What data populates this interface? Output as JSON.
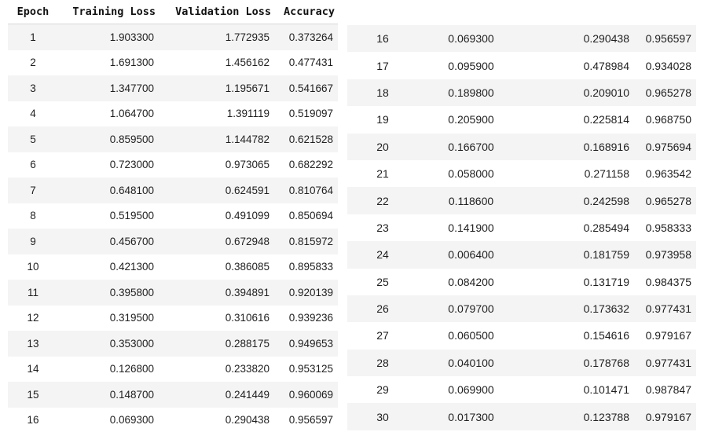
{
  "chart_data": {
    "type": "table",
    "columns": [
      "Epoch",
      "Training Loss",
      "Validation Loss",
      "Accuracy"
    ],
    "rows": [
      [
        "1",
        "1.903300",
        "1.772935",
        "0.373264"
      ],
      [
        "2",
        "1.691300",
        "1.456162",
        "0.477431"
      ],
      [
        "3",
        "1.347700",
        "1.195671",
        "0.541667"
      ],
      [
        "4",
        "1.064700",
        "1.391119",
        "0.519097"
      ],
      [
        "5",
        "0.859500",
        "1.144782",
        "0.621528"
      ],
      [
        "6",
        "0.723000",
        "0.973065",
        "0.682292"
      ],
      [
        "7",
        "0.648100",
        "0.624591",
        "0.810764"
      ],
      [
        "8",
        "0.519500",
        "0.491099",
        "0.850694"
      ],
      [
        "9",
        "0.456700",
        "0.672948",
        "0.815972"
      ],
      [
        "10",
        "0.421300",
        "0.386085",
        "0.895833"
      ],
      [
        "11",
        "0.395800",
        "0.394891",
        "0.920139"
      ],
      [
        "12",
        "0.319500",
        "0.310616",
        "0.939236"
      ],
      [
        "13",
        "0.353000",
        "0.288175",
        "0.949653"
      ],
      [
        "14",
        "0.126800",
        "0.233820",
        "0.953125"
      ],
      [
        "15",
        "0.148700",
        "0.241449",
        "0.960069"
      ],
      [
        "16",
        "0.069300",
        "0.290438",
        "0.956597"
      ]
    ],
    "rows_continued": [
      [
        "16",
        "0.069300",
        "0.290438",
        "0.956597"
      ],
      [
        "17",
        "0.095900",
        "0.478984",
        "0.934028"
      ],
      [
        "18",
        "0.189800",
        "0.209010",
        "0.965278"
      ],
      [
        "19",
        "0.205900",
        "0.225814",
        "0.968750"
      ],
      [
        "20",
        "0.166700",
        "0.168916",
        "0.975694"
      ],
      [
        "21",
        "0.058000",
        "0.271158",
        "0.963542"
      ],
      [
        "22",
        "0.118600",
        "0.242598",
        "0.965278"
      ],
      [
        "23",
        "0.141900",
        "0.285494",
        "0.958333"
      ],
      [
        "24",
        "0.006400",
        "0.181759",
        "0.973958"
      ],
      [
        "25",
        "0.084200",
        "0.131719",
        "0.984375"
      ],
      [
        "26",
        "0.079700",
        "0.173632",
        "0.977431"
      ],
      [
        "27",
        "0.060500",
        "0.154616",
        "0.979167"
      ],
      [
        "28",
        "0.040100",
        "0.178768",
        "0.977431"
      ],
      [
        "29",
        "0.069900",
        "0.101471",
        "0.987847"
      ],
      [
        "30",
        "0.017300",
        "0.123788",
        "0.979167"
      ]
    ]
  }
}
